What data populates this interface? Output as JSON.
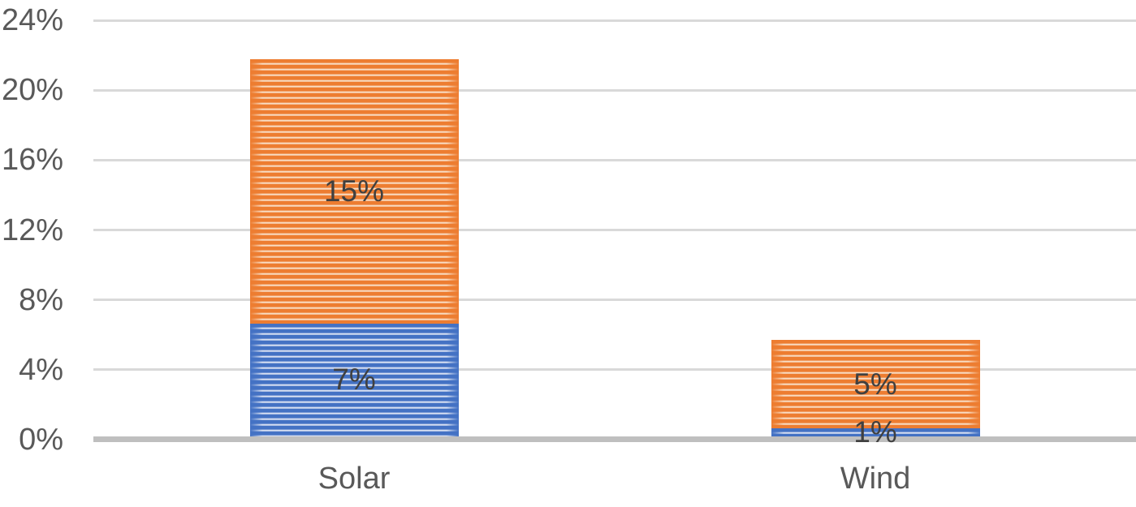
{
  "chart_data": {
    "type": "bar",
    "stacked": true,
    "title": "",
    "xlabel": "",
    "ylabel": "",
    "categories": [
      "Solar",
      "Wind"
    ],
    "series": [
      {
        "name": "bottom-series-blue",
        "key": "blue",
        "color": "#4472C4",
        "pattern_bg": "#D8E0F2",
        "pattern": "horizontal-stripes",
        "values": [
          6.65,
          0.65
        ],
        "labels": [
          "7%",
          "1%"
        ]
      },
      {
        "name": "top-series-orange",
        "key": "orange",
        "color": "#ED7D31",
        "pattern_bg": "#F8DCC3",
        "pattern": "horizontal-stripes",
        "values": [
          15.1,
          5.05
        ],
        "labels": [
          "15%",
          "5%"
        ]
      }
    ],
    "stack_totals": [
      21.75,
      5.7
    ],
    "ylim": [
      0,
      24
    ],
    "yticks": [
      {
        "value": 0,
        "label": "0%"
      },
      {
        "value": 4,
        "label": "4%"
      },
      {
        "value": 8,
        "label": "8%"
      },
      {
        "value": 12,
        "label": "12%"
      },
      {
        "value": 16,
        "label": "16%"
      },
      {
        "value": 20,
        "label": "20%"
      },
      {
        "value": 24,
        "label": "24%"
      }
    ],
    "grid": "horizontal",
    "legend": "none"
  },
  "colors": {
    "background": "#FFFFFF",
    "gridline": "#D9D9D9",
    "axis_line": "#BFBFBF",
    "tick_text": "#595959",
    "category_text": "#595959",
    "data_label_text": "#404040",
    "series_blue": "#4472C4",
    "series_blue_stripe_gap": "#D8E0F2",
    "series_orange": "#ED7D31",
    "series_orange_stripe_gap": "#F8DCC3"
  }
}
